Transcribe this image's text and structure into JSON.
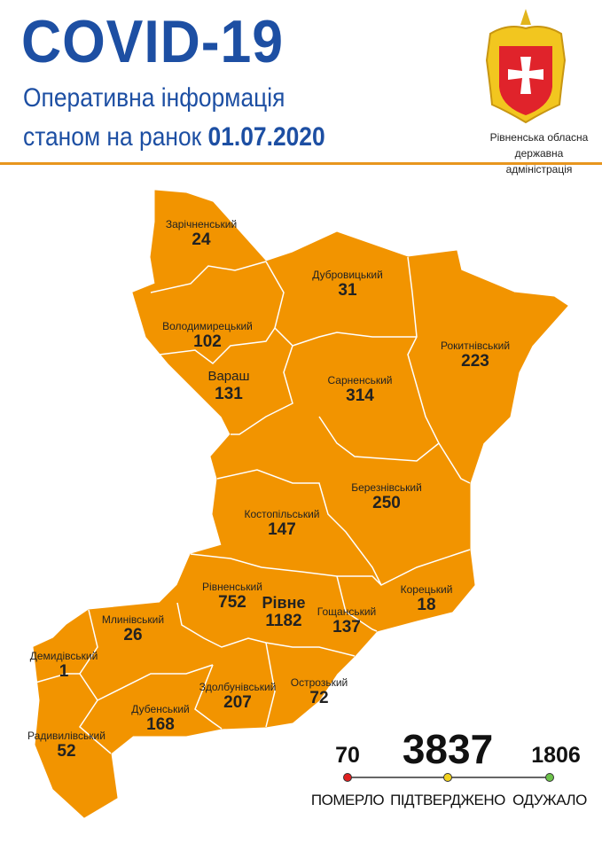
{
  "header": {
    "title": "COVID-19",
    "subtitle_line1": "Оперативна інформація",
    "subtitle_line2_prefix": "станом на ранок",
    "date": "01.07.2020"
  },
  "organization": {
    "line1": "Рівненська обласна",
    "line2": "державна адміністрація",
    "emblem": "rivne-oblast-coat-of-arms"
  },
  "map": {
    "fill_color": "#F29400",
    "border_color": "#ffffff",
    "districts": [
      {
        "name": "Зарічненський",
        "cases": "24"
      },
      {
        "name": "Дубровицький",
        "cases": "31"
      },
      {
        "name": "Володимирецький",
        "cases": "102"
      },
      {
        "name": "Вараш",
        "cases": "131"
      },
      {
        "name": "Сарненський",
        "cases": "314"
      },
      {
        "name": "Рокитнівський",
        "cases": "223"
      },
      {
        "name": "Березнівський",
        "cases": "250"
      },
      {
        "name": "Костопільський",
        "cases": "147"
      },
      {
        "name": "Рівненський",
        "cases": "752"
      },
      {
        "name": "Рівне",
        "cases": "1182"
      },
      {
        "name": "Гощанський",
        "cases": "137"
      },
      {
        "name": "Корецький",
        "cases": "18"
      },
      {
        "name": "Млинівський",
        "cases": "26"
      },
      {
        "name": "Демидівський",
        "cases": "1"
      },
      {
        "name": "Здолбунівський",
        "cases": "207"
      },
      {
        "name": "Острозький",
        "cases": "72"
      },
      {
        "name": "Дубенський",
        "cases": "168"
      },
      {
        "name": "Радивилівський",
        "cases": "52"
      }
    ]
  },
  "stats": {
    "died": {
      "value": "70",
      "label": "ПОМЕРЛО",
      "color": "#e02020"
    },
    "confirmed": {
      "value": "3837",
      "label": "ПІДТВЕРДЖЕНО",
      "color": "#f2d21e"
    },
    "recovered": {
      "value": "1806",
      "label": "ОДУЖАЛО",
      "color": "#6cc24a"
    }
  }
}
